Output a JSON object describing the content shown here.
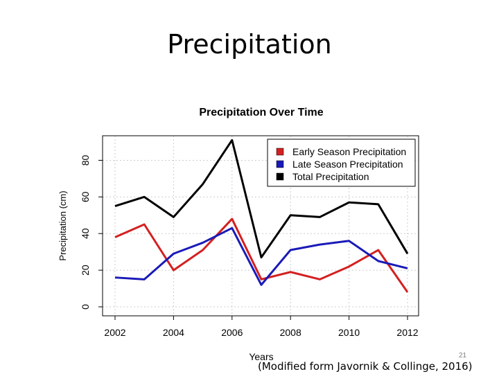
{
  "slide": {
    "title": "Precipitation",
    "slide_number": "21",
    "citation": "(Modified form Javornik & Collinge, 2016)"
  },
  "colors": {
    "early": "#d42020",
    "late": "#1a1ab8",
    "total": "#000000",
    "grid": "#cccccc"
  },
  "chart_data": {
    "type": "line",
    "title": "Precipitation Over Time",
    "xlabel": "Years",
    "ylabel": "Precipitation (cm)",
    "x": [
      2002,
      2003,
      2004,
      2005,
      2006,
      2007,
      2008,
      2009,
      2010,
      2011,
      2012
    ],
    "xlim": [
      2002,
      2012
    ],
    "ylim": [
      0,
      90
    ],
    "xticks": [
      "2002",
      "2004",
      "2006",
      "2008",
      "2010",
      "2012"
    ],
    "yticks": [
      "0",
      "20",
      "40",
      "60",
      "80"
    ],
    "grid": true,
    "legend_position": "top-right",
    "series": [
      {
        "name": "Early Season Precipitation",
        "color": "#d42020",
        "values": [
          38,
          45,
          20,
          31,
          48,
          15,
          19,
          15,
          22,
          31,
          8
        ]
      },
      {
        "name": "Late Season Precipitation",
        "color": "#1a1ab8",
        "values": [
          16,
          15,
          29,
          35,
          43,
          12,
          31,
          34,
          36,
          25,
          21
        ]
      },
      {
        "name": "Total Precipitation",
        "color": "#000000",
        "values": [
          55,
          60,
          49,
          67,
          91,
          27,
          50,
          49,
          57,
          56,
          29
        ]
      }
    ]
  }
}
